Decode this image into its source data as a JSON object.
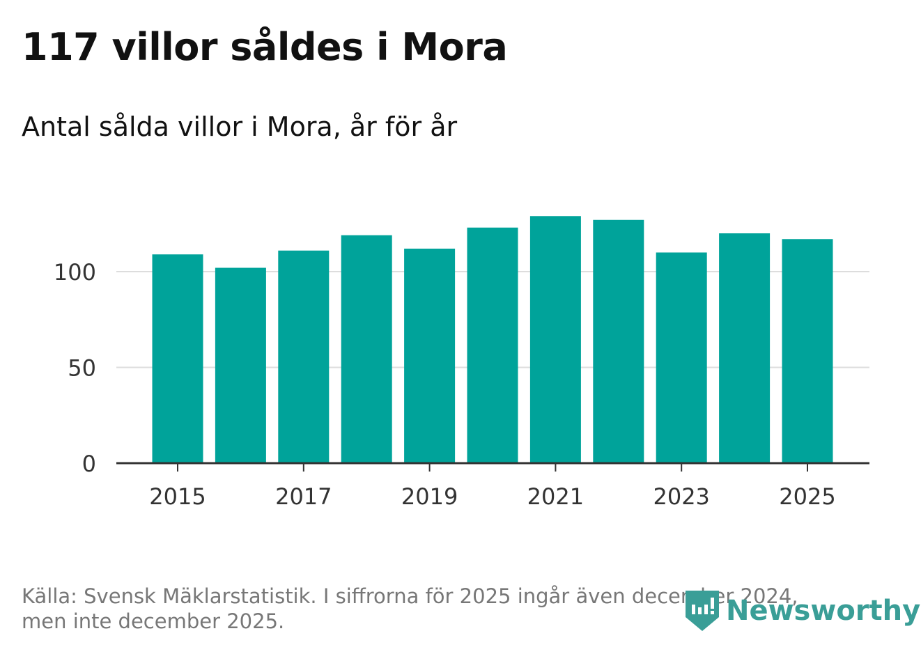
{
  "title": "117 villor såldes i Mora",
  "subtitle": "Antal sålda villor i Mora, år för år",
  "source_line1": "Källa: Svensk Mäklarstatistik. I siffrorna för 2025 ingår även december 2024,",
  "source_line2": "men inte december 2025.",
  "logo": "Newsworthy",
  "colors": {
    "bar": "#00a39a",
    "grid": "#dddddd",
    "axis": "#333333",
    "logo": "#3a9e97"
  },
  "chart_data": {
    "type": "bar",
    "title": "117 villor såldes i Mora",
    "subtitle": "Antal sålda villor i Mora, år för år",
    "xlabel": "",
    "ylabel": "",
    "categories": [
      "2015",
      "2016",
      "2017",
      "2018",
      "2019",
      "2020",
      "2021",
      "2022",
      "2023",
      "2024",
      "2025"
    ],
    "values": [
      109,
      102,
      111,
      119,
      112,
      123,
      129,
      127,
      110,
      120,
      117
    ],
    "x_tick_labels": [
      "2015",
      "2017",
      "2019",
      "2021",
      "2023",
      "2025"
    ],
    "y_ticks": [
      0,
      50,
      100
    ],
    "ylim": [
      0,
      140
    ],
    "grid": true
  }
}
